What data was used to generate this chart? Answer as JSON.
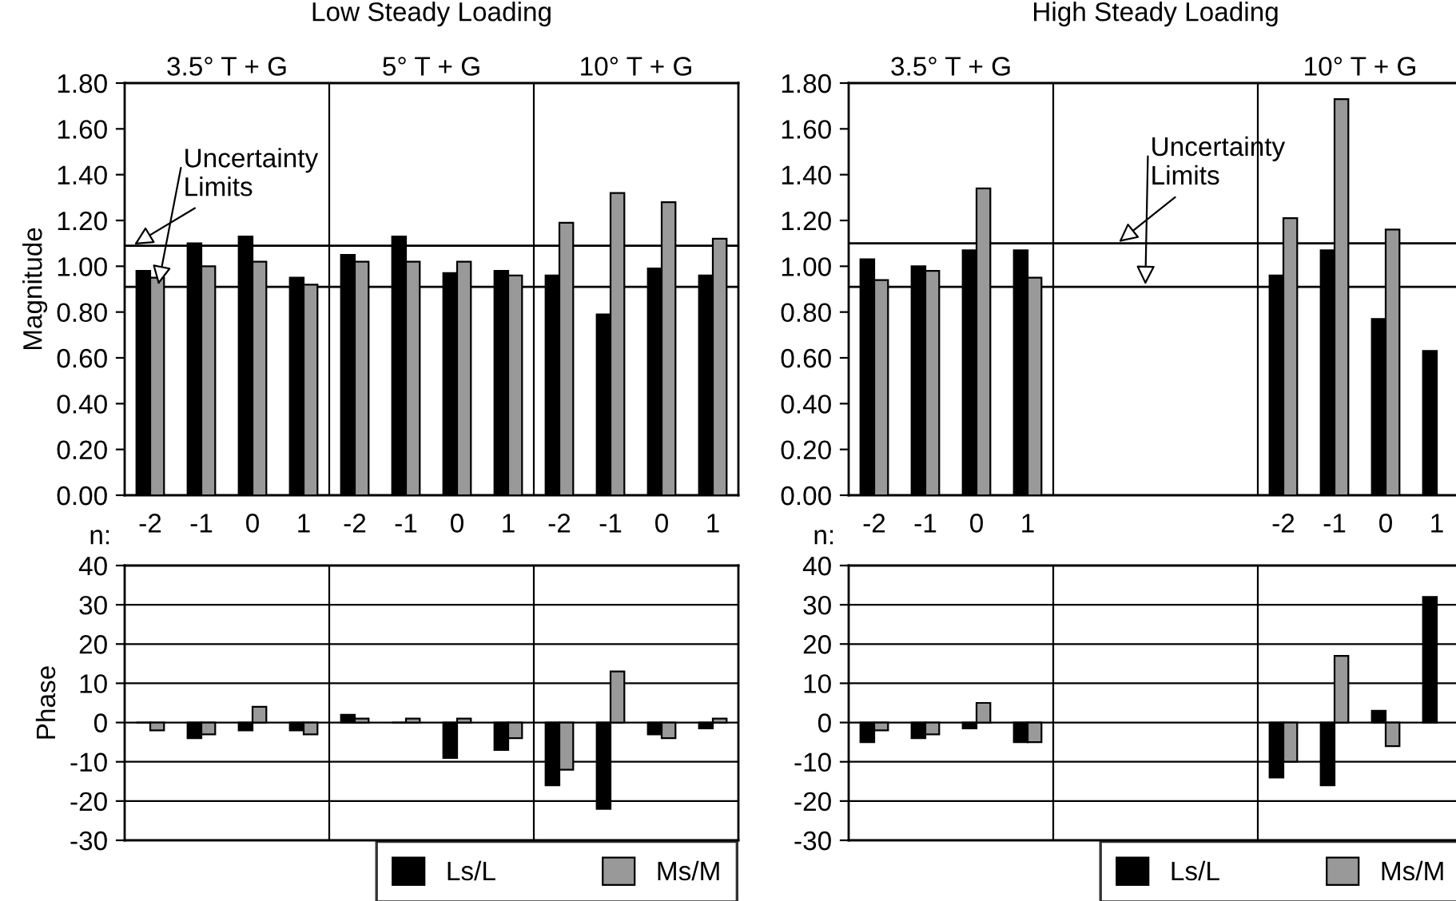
{
  "chart_data": [
    {
      "type": "bar",
      "title": "Low Steady Loading",
      "ylabel": "Magnitude",
      "xlabel": "n:",
      "categories": [
        "-2",
        "-1",
        "0",
        "1",
        "-2",
        "-1",
        "0",
        "1",
        "-2",
        "-1",
        "0",
        "1"
      ],
      "series": [
        {
          "color": "#000000",
          "values": [
            0.98,
            1.1,
            1.13,
            0.95,
            1.05,
            1.13,
            0.97,
            0.98,
            0.96,
            0.79,
            0.99,
            0.96
          ]
        },
        {
          "color": "#999999",
          "values": [
            0.95,
            1.0,
            1.02,
            0.92,
            1.02,
            1.02,
            1.02,
            0.96,
            1.19,
            1.32,
            1.28,
            1.12
          ]
        }
      ],
      "ylim": [
        0,
        1.8
      ],
      "yticks": [
        {
          "value": 0,
          "label": "0.00"
        },
        {
          "value": 0.2,
          "label": "0.20"
        },
        {
          "value": 0.4,
          "label": "0.40"
        },
        {
          "value": 0.6,
          "label": "0.60"
        },
        {
          "value": 0.8,
          "label": "0.80"
        },
        {
          "value": 1.0,
          "label": "1.00"
        },
        {
          "value": 1.2,
          "label": "1.20"
        },
        {
          "value": 1.4,
          "label": "1.40"
        },
        {
          "value": 1.6,
          "label": "1.60"
        },
        {
          "value": 1.8,
          "label": "1.80"
        }
      ],
      "ref_lines": [
        {
          "axis": "y",
          "value": 1.09
        },
        {
          "axis": "y",
          "value": 0.91
        }
      ],
      "annotations": [
        "3.5° T + G",
        "5° T + G",
        "10° T + G",
        {
          "text": "Uncertainty\nLimits",
          "y": 1.09
        }
      ],
      "grid": false,
      "legend": false
    },
    {
      "type": "bar",
      "ylabel": "Phase",
      "categories": [
        "-2",
        "-1",
        "0",
        "1",
        "-2",
        "-1",
        "0",
        "1",
        "-2",
        "-1",
        "0",
        "1"
      ],
      "series": [
        {
          "name": "Ls/L",
          "color": "#000000",
          "values": [
            0,
            -4,
            -2,
            -2,
            2,
            0,
            -9,
            -7,
            -16,
            -22,
            -3,
            -1.5
          ]
        },
        {
          "name": "Ms/M",
          "color": "#999999",
          "values": [
            -2,
            -3,
            4,
            -3,
            1,
            1,
            1,
            -4,
            -12,
            13,
            -4,
            1
          ]
        }
      ],
      "ylim": [
        -30,
        40
      ],
      "yticks": [
        -30,
        -20,
        -10,
        0,
        10,
        20,
        30,
        40
      ],
      "grid": "y",
      "legend": "bottom right",
      "tick_labels": "y"
    },
    {
      "type": "bar",
      "title": "High Steady Loading",
      "xlabel": "n:",
      "categories": [
        "-2",
        "-1",
        "0",
        "1",
        null,
        null,
        null,
        null,
        "-2",
        "-1",
        "0",
        "1"
      ],
      "series": [
        {
          "color": "#000000",
          "values": [
            1.03,
            1.0,
            1.07,
            1.07,
            null,
            null,
            null,
            null,
            0.96,
            1.07,
            0.77,
            0.63
          ]
        },
        {
          "color": "#999999",
          "values": [
            0.94,
            0.98,
            1.34,
            0.95,
            null,
            null,
            null,
            null,
            1.21,
            1.73,
            1.16,
            null
          ]
        }
      ],
      "ylim": [
        0,
        1.8
      ],
      "yticks": [
        {
          "value": 0,
          "label": "0.00"
        },
        {
          "value": 0.2,
          "label": "0.20"
        },
        {
          "value": 0.4,
          "label": "0.40"
        },
        {
          "value": 0.6,
          "label": "0.60"
        },
        {
          "value": 0.8,
          "label": "0.80"
        },
        {
          "value": 1.0,
          "label": "1.00"
        },
        {
          "value": 1.2,
          "label": "1.20"
        },
        {
          "value": 1.4,
          "label": "1.40"
        },
        {
          "value": 1.6,
          "label": "1.60"
        },
        {
          "value": 1.8,
          "label": "1.80"
        }
      ],
      "ref_lines": [
        {
          "axis": "y",
          "value": 1.1
        },
        {
          "axis": "y",
          "value": 0.91
        }
      ],
      "annotations": [
        "3.5° T + G",
        "10° T + G",
        {
          "text": "Uncertainty\nLimits",
          "y": 1.1
        }
      ],
      "grid": false,
      "legend": false
    },
    {
      "type": "bar",
      "categories": [
        "-2",
        "-1",
        "0",
        "1",
        null,
        null,
        null,
        null,
        "-2",
        "-1",
        "0",
        "1"
      ],
      "series": [
        {
          "name": "Ls/L",
          "color": "#000000",
          "values": [
            -5,
            -4,
            -1.5,
            -5,
            null,
            null,
            null,
            null,
            -14,
            -16,
            3,
            32
          ]
        },
        {
          "name": "Ms/M",
          "color": "#999999",
          "values": [
            -2,
            -3,
            5,
            -5,
            null,
            null,
            null,
            null,
            -10,
            17,
            -6,
            null
          ]
        }
      ],
      "ylim": [
        -30,
        40
      ],
      "yticks": [
        -30,
        -20,
        -10,
        0,
        10,
        20,
        30,
        40
      ],
      "grid": "y",
      "legend": "bottom right",
      "tick_labels": "y"
    }
  ]
}
